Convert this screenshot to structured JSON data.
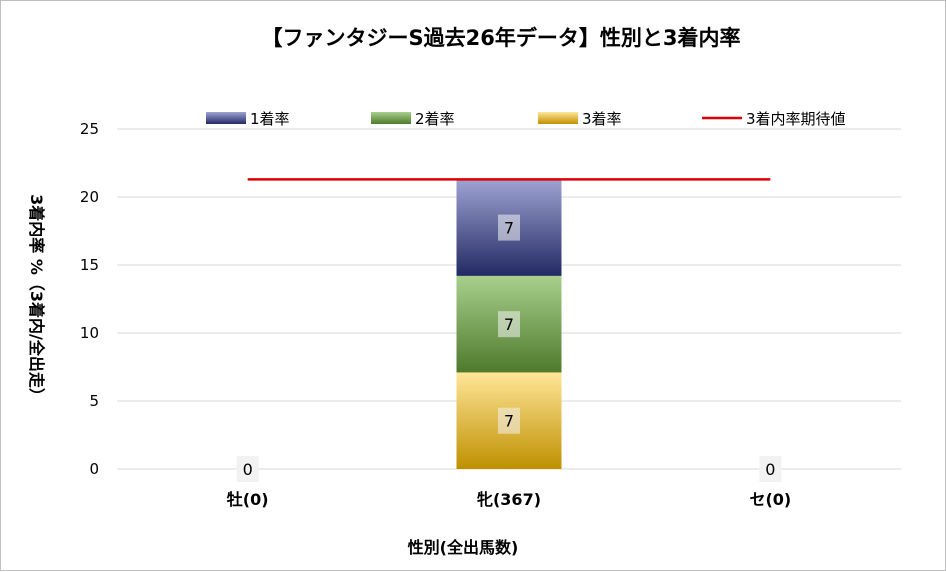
{
  "chart_data": {
    "type": "bar",
    "stacked": true,
    "title": "【ファンタジーS過去26年データ】性別と3着内率",
    "xlabel": "性別(全出馬数)",
    "ylabel": "3着内率 %（3着内/全出走）",
    "ylim": [
      0,
      25
    ],
    "yticks": [
      0,
      5,
      10,
      15,
      20,
      25
    ],
    "grid": true,
    "legend_position": "top",
    "categories": [
      "牡(0)",
      "牝(367)",
      "セ(0)"
    ],
    "series": [
      {
        "name": "1着率",
        "values": [
          0,
          7.1,
          0
        ],
        "labels": [
          "0",
          "7",
          "0"
        ],
        "color_top": "#9ea3d3",
        "color_bottom": "#232a63"
      },
      {
        "name": "2着率",
        "values": [
          0,
          7.1,
          0
        ],
        "labels": [
          "",
          "7",
          ""
        ],
        "color_top": "#a8d08d",
        "color_bottom": "#4e7a2c"
      },
      {
        "name": "3着率",
        "values": [
          0,
          7.1,
          0
        ],
        "labels": [
          "",
          "7",
          ""
        ],
        "color_top": "#ffe699",
        "color_bottom": "#bf9000"
      }
    ],
    "reference_line": {
      "name": "3着内率期待値",
      "value": 21.3,
      "color": "#e00000"
    }
  }
}
